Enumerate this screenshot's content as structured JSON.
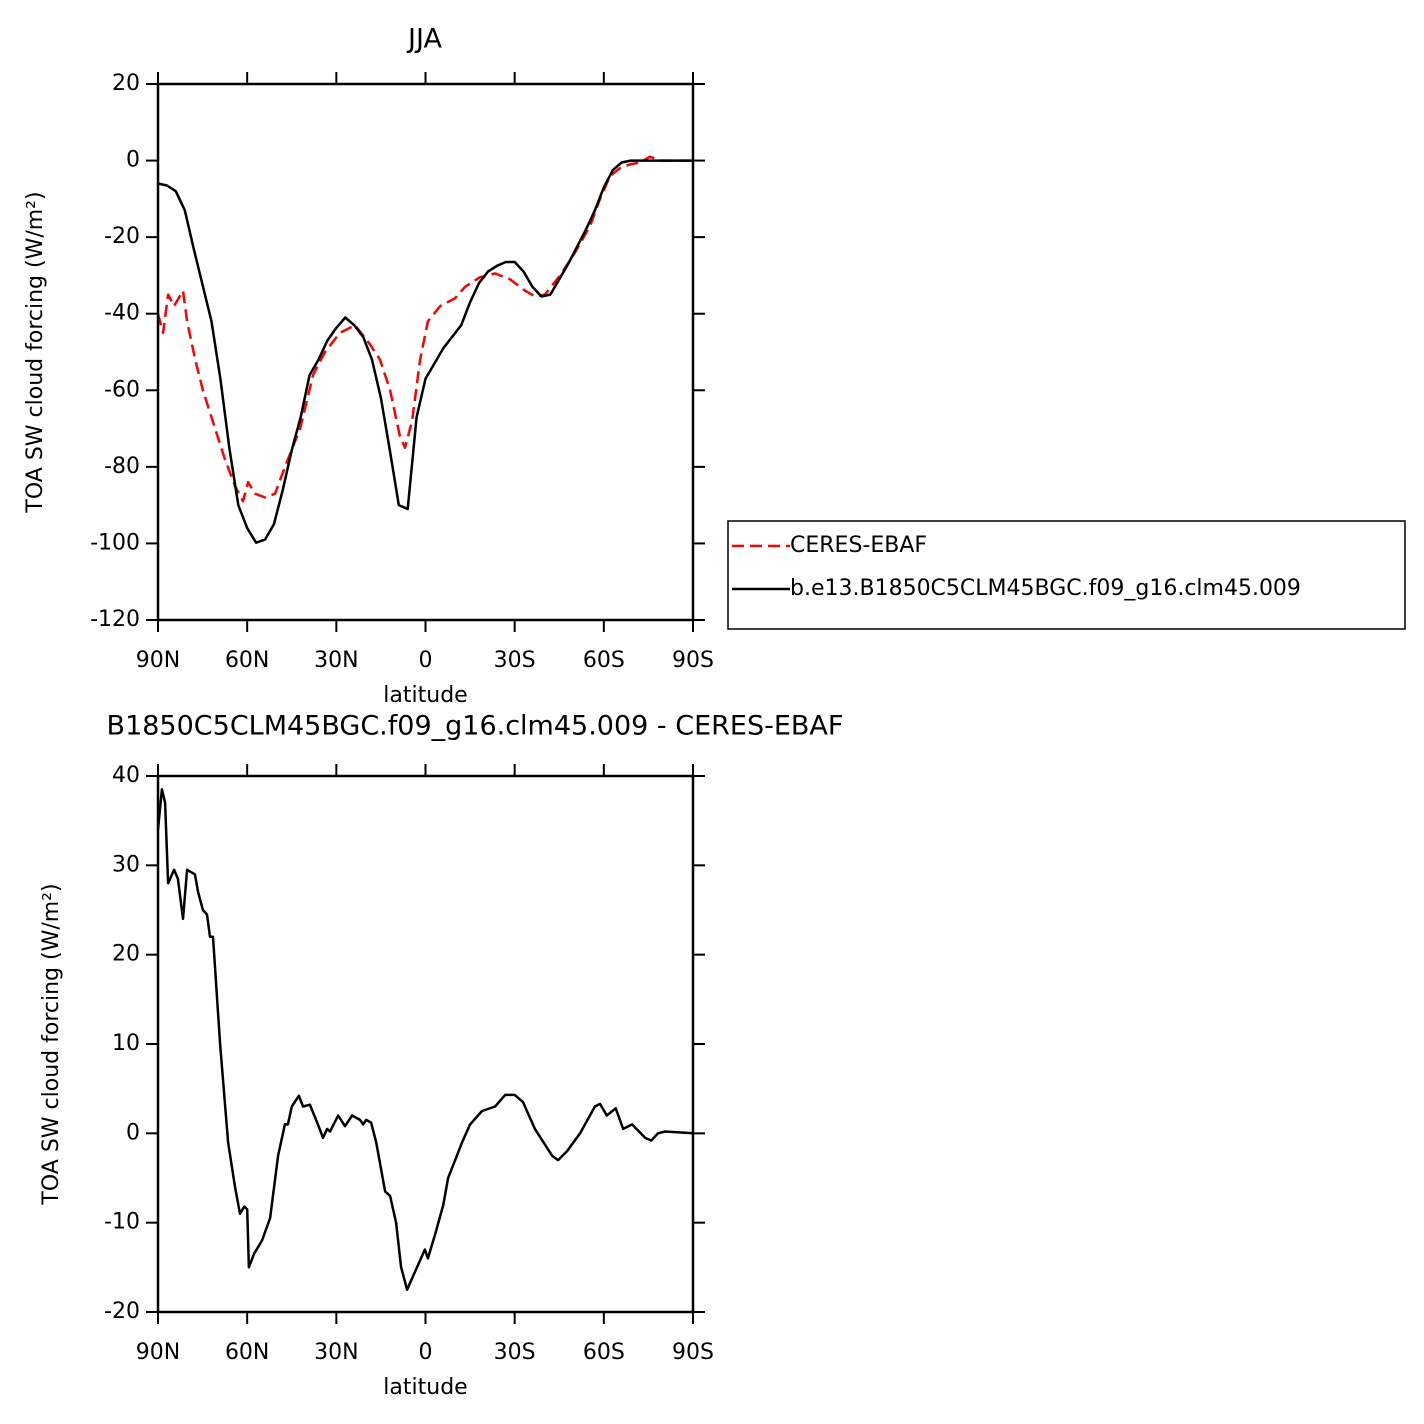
{
  "chart_data": [
    {
      "type": "line",
      "title": "JJA",
      "xlabel": "latitude",
      "ylabel": "TOA SW cloud forcing (W/m²)",
      "xlim": [
        90,
        -90
      ],
      "xticks": [
        {
          "value": 90,
          "label": "90N"
        },
        {
          "value": 60,
          "label": "60N"
        },
        {
          "value": 30,
          "label": "30N"
        },
        0,
        {
          "value": -30,
          "label": "30S"
        },
        {
          "value": -60,
          "label": "60S"
        },
        {
          "value": -90,
          "label": "90S"
        }
      ],
      "ylim": [
        -120,
        20
      ],
      "yticks": [
        -120,
        -100,
        -80,
        -60,
        -40,
        -20,
        0,
        20
      ],
      "legend": "right",
      "series": [
        {
          "name": "CERES-EBAF",
          "color": "#ff0000",
          "dashed": true,
          "x": [
            90,
            88.3,
            86.6,
            84.6,
            81.6,
            80.2,
            77.5,
            74.9,
            70.8,
            67.5,
            64.1,
            61.4,
            59.7,
            57.4,
            54,
            50.6,
            47.3,
            42.2,
            37.8,
            33.8,
            28.8,
            23.7,
            18.7,
            15.3,
            11.9,
            8.6,
            6.9,
            4.5,
            1.8,
            -0.8,
            -4.9,
            -9.9,
            -13.3,
            -18.3,
            -23.4,
            -28.4,
            -33.5,
            -36.8,
            -40.2,
            -45.3,
            -50.3,
            -55.4,
            -58.7,
            -62.1,
            -65.4,
            -68.8,
            -72.2,
            -75.5,
            -78.9,
            -90
          ],
          "values": [
            -40,
            -45,
            -35,
            -38,
            -34,
            -42,
            -52,
            -60,
            -70,
            -78,
            -85,
            -89,
            -84,
            -87,
            -88,
            -87,
            -80,
            -70,
            -56,
            -50,
            -45,
            -43,
            -48,
            -52,
            -60,
            -72,
            -75,
            -68,
            -52,
            -42,
            -38,
            -36,
            -33,
            -30.5,
            -29.5,
            -31,
            -34,
            -35.5,
            -35,
            -30,
            -24,
            -17,
            -10,
            -4,
            -2,
            -1,
            -0.5,
            1,
            0,
            0
          ]
        },
        {
          "name": "b.e13.B1850C5CLM45BGC.f09_g16.clm45.009",
          "color": "#000000",
          "dashed": false,
          "x": [
            90,
            87,
            84,
            81,
            78,
            75,
            72,
            69,
            66,
            63,
            60,
            57,
            54,
            51,
            48,
            45,
            42,
            39,
            36,
            33,
            30,
            27,
            24,
            21,
            18,
            15,
            12,
            9,
            6,
            3,
            0,
            -3,
            -6,
            -9,
            -12,
            -15,
            -18,
            -21,
            -24,
            -27,
            -30,
            -33,
            -36,
            -39,
            -42,
            -45,
            -48,
            -51,
            -54,
            -57,
            -60,
            -63,
            -66,
            -69,
            -72,
            -75,
            -78,
            -81,
            -84,
            -87,
            -90
          ],
          "values": [
            -6,
            -6.5,
            -8,
            -13,
            -23,
            -32.5,
            -42,
            -57,
            -75,
            -90,
            -96,
            -99.8,
            -99,
            -95,
            -86,
            -75.6,
            -67,
            -56,
            -52,
            -47,
            -43.7,
            -41,
            -43,
            -46,
            -52,
            -62,
            -75.6,
            -90,
            -91,
            -67,
            -57,
            -53,
            -49,
            -46,
            -43,
            -37,
            -32,
            -29,
            -27.5,
            -26.5,
            -26.5,
            -29,
            -33,
            -35.5,
            -35,
            -31,
            -27,
            -22.5,
            -18,
            -13,
            -7,
            -2.5,
            -0.5,
            0,
            0,
            0,
            0,
            0,
            0,
            0,
            0
          ]
        }
      ]
    },
    {
      "type": "line",
      "title": "B1850C5CLM45BGC.f09_g16.clm45.009 - CERES-EBAF",
      "xlabel": "latitude",
      "ylabel": "TOA SW cloud forcing (W/m²)",
      "xlim": [
        90,
        -90
      ],
      "xticks": [
        {
          "value": 90,
          "label": "90N"
        },
        {
          "value": 60,
          "label": "60N"
        },
        {
          "value": 30,
          "label": "30N"
        },
        0,
        {
          "value": -30,
          "label": "30S"
        },
        {
          "value": -60,
          "label": "60S"
        },
        {
          "value": -90,
          "label": "90S"
        }
      ],
      "ylim": [
        -20,
        40
      ],
      "yticks": [
        -20,
        -10,
        0,
        10,
        20,
        30,
        40
      ],
      "series": [
        {
          "color": "#000000",
          "dashed": false,
          "x": [
            90,
            88.7,
            87.6,
            86.6,
            84.6,
            83.3,
            81.6,
            80.2,
            77.6,
            76.5,
            74.9,
            73.5,
            72.5,
            71.5,
            69.1,
            66.4,
            64.1,
            62.4,
            61,
            60,
            59.4,
            57.7,
            55,
            52.3,
            49.6,
            47.3,
            46.3,
            45,
            42.6,
            41.2,
            38.9,
            36.2,
            34.5,
            33.1,
            32.1,
            29.4,
            27.1,
            24.7,
            22,
            21,
            20,
            18.3,
            16.6,
            13.6,
            11.9,
            9.9,
            8.2,
            6.2,
            4.2,
            0.2,
            -0.8,
            -3.5,
            -6,
            -7.6,
            -10,
            -12.3,
            -15,
            -19,
            -23.4,
            -26.8,
            -30,
            -32.8,
            -36.8,
            -42.6,
            -44.6,
            -47.6,
            -52,
            -57,
            -58.7,
            -61,
            -64,
            -66.5,
            -69.5,
            -73.9,
            -76,
            -78.2,
            -80.6,
            -90
          ],
          "values": [
            34,
            38.5,
            37,
            28,
            29.5,
            28.5,
            24,
            29.5,
            29,
            27,
            25,
            24.5,
            22,
            22,
            10,
            -1,
            -6,
            -9,
            -8.2,
            -8.5,
            -15,
            -13.5,
            -12,
            -9.5,
            -2.5,
            1,
            1,
            3,
            4.2,
            3,
            3.2,
            1,
            -0.5,
            0.5,
            0.2,
            2,
            0.8,
            2,
            1.5,
            1,
            1.5,
            1.2,
            -1,
            -6.5,
            -7,
            -10,
            -15,
            -17.5,
            -16,
            -13,
            -14,
            -11,
            -8,
            -5,
            -3,
            -1,
            1,
            2.5,
            3,
            4.3,
            4.3,
            3.5,
            0.5,
            -2.5,
            -3,
            -2,
            0,
            3,
            3.3,
            2,
            2.8,
            0.5,
            1,
            -0.5,
            -0.8,
            0,
            0.2,
            0
          ]
        }
      ]
    }
  ]
}
